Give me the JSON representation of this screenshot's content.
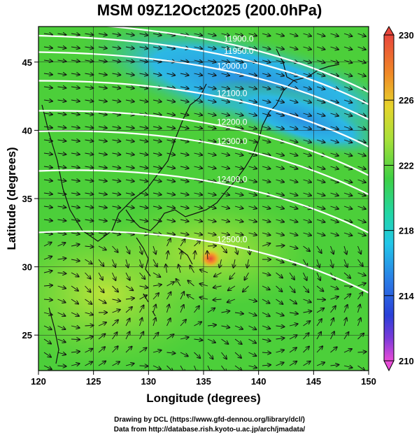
{
  "title": "MSM 09Z12Oct2025 (200.0hPa)",
  "x_axis": {
    "label": "Longitude (degrees)",
    "ticks": [
      "120",
      "125",
      "130",
      "135",
      "140",
      "145",
      "150"
    ],
    "range": [
      120,
      150
    ]
  },
  "y_axis": {
    "label": "Latitude  (degrees)",
    "ticks": [
      "25",
      "30",
      "35",
      "40",
      "45"
    ],
    "range": [
      22.4,
      47.6
    ]
  },
  "colorbar": {
    "ticks": [
      "230",
      "226",
      "222",
      "218",
      "214",
      "210"
    ],
    "range": [
      210,
      230
    ]
  },
  "contours": [
    {
      "label": "11900.0",
      "lat": 46.4
    },
    {
      "label": "11950.0",
      "lat": 45.5
    },
    {
      "label": "12000.0",
      "lat": 44.4
    },
    {
      "label": "12100.0",
      "lat": 42.4
    },
    {
      "label": "12200.0",
      "lat": 40.3
    },
    {
      "label": "12300.0",
      "lat": 38.9
    },
    {
      "label": "12400.0",
      "lat": 36.1
    },
    {
      "label": "12500.0",
      "lat": 31.7
    }
  ],
  "colors": {
    "colorbar_top": "#e8463c",
    "colorbar_bottom": "#e84cd8",
    "land_green": "#4ccf3a",
    "jet_blue": "#2b8ee0",
    "warm_yellow": "#b6e03a",
    "contour": "#ffffff"
  },
  "credits": [
    "Drawing by DCL (https://www.gfd-dennou.org/library/dcl/)",
    "Data from http://database.rish.kyoto-u.ac.jp/arch/jmadata/"
  ]
}
